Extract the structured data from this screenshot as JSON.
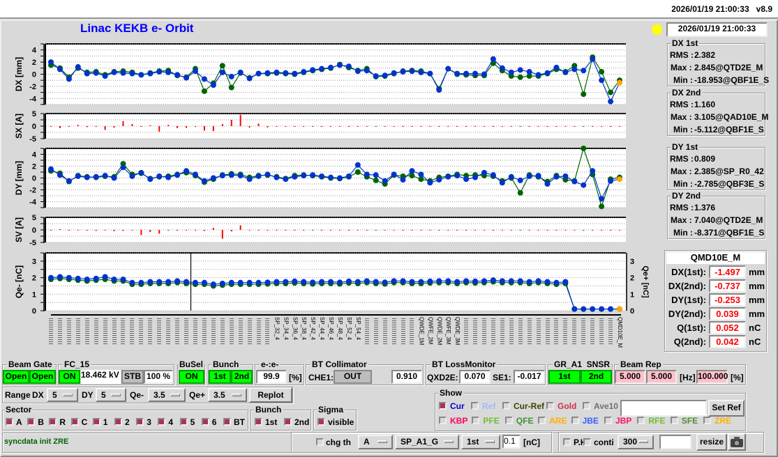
{
  "topbar": {
    "datetime": "2026/01/19 21:00:33",
    "version": "v8.9"
  },
  "title": "Linac KEKB e- Orbit",
  "status_light_color": "#ffff00",
  "panel_datetime": "2026/01/19 21:00:33",
  "stats": [
    {
      "title": "DX 1st",
      "rms_label": "RMS :",
      "rms": "2.382",
      "max_label": "Max :",
      "max": "2.845@QTD2E_M",
      "min_label": "Min :",
      "min": "-18.953@QBF1E_S"
    },
    {
      "title": "DX 2nd",
      "rms_label": "RMS :",
      "rms": "1.160",
      "max_label": "Max :",
      "max": "3.105@QAD10E_M",
      "min_label": "Min :",
      "min": "-5.112@QBF1E_S"
    },
    {
      "title": "DY 1st",
      "rms_label": "RMS :",
      "rms": "0.809",
      "max_label": "Max :",
      "max": "2.385@SP_R0_42",
      "min_label": "Min :",
      "min": "-2.785@QBF3E_S"
    },
    {
      "title": "DY 2nd",
      "rms_label": "RMS :",
      "rms": "1.376",
      "max_label": "Max :",
      "max": "7.040@QTD2E_M",
      "min_label": "Min :",
      "min": "-8.371@QBF1E_S"
    }
  ],
  "monitor": {
    "name": "QMD10E_M",
    "rows": [
      {
        "label": "DX(1st):",
        "value": "-1.497",
        "unit": "mm"
      },
      {
        "label": "DX(2nd):",
        "value": "-0.737",
        "unit": "mm"
      },
      {
        "label": "DY(1st):",
        "value": "-0.253",
        "unit": "mm"
      },
      {
        "label": "DY(2nd):",
        "value": "0.039",
        "unit": "mm"
      },
      {
        "label": "Q(1st):",
        "value": "0.052",
        "unit": "nC"
      },
      {
        "label": "Q(2nd):",
        "value": "0.042",
        "unit": "nC"
      }
    ]
  },
  "chart_data": [
    {
      "type": "line",
      "ylabel": "DX [mm]",
      "ylim": [
        -5,
        5
      ],
      "ticks": [
        "4",
        "2",
        "0",
        "-2",
        "-4"
      ],
      "grid": true,
      "series": [
        {
          "color": "#006400",
          "values": [
            1.5,
            1.0,
            -0.5,
            1.0,
            0.3,
            0.4,
            -0.1,
            0.4,
            0.5,
            0.3,
            -0.1,
            0.2,
            0.5,
            0.6,
            -0.2,
            -0.5,
            0.9,
            -2.8,
            -1.5,
            1.4,
            -2.2,
            0.2,
            -0.6,
            0.1,
            0.1,
            0.2,
            0.1,
            0.0,
            0.3,
            0.6,
            0.8,
            1.0,
            1.6,
            1.1,
            0.6,
            0.9,
            -0.4,
            -0.3,
            0.1,
            0.5,
            0.6,
            0.5,
            0.1,
            -2.4,
            0.9,
            0.0,
            -0.1,
            -0.2,
            -0.2,
            1.8,
            0.6,
            -0.3,
            -0.5,
            -0.3,
            -0.3,
            0.1,
            0.8,
            0.4,
            1.4,
            -3.3,
            2.8,
            0.4,
            -3.0,
            -1.0
          ]
        },
        {
          "color": "#0033cc",
          "values": [
            2.0,
            0.8,
            -0.8,
            1.2,
            0.1,
            0.2,
            -0.3,
            0.3,
            0.2,
            0.1,
            -0.1,
            0.1,
            0.4,
            0.3,
            -0.1,
            -0.6,
            0.5,
            -0.8,
            -1.8,
            0.3,
            -0.4,
            0.3,
            -0.7,
            0.1,
            0.2,
            0.3,
            0.2,
            0.1,
            0.4,
            0.7,
            0.9,
            1.1,
            1.5,
            1.3,
            0.5,
            0.6,
            -0.3,
            -0.2,
            0.2,
            0.4,
            0.5,
            0.3,
            0.1,
            -2.6,
            0.9,
            0.1,
            0.1,
            0.1,
            0.0,
            2.5,
            1.0,
            0.3,
            0.7,
            0.4,
            -0.1,
            0.2,
            1.1,
            0.3,
            0.8,
            0.6,
            2.5,
            -1.0,
            -4.5,
            -1.4
          ]
        }
      ]
    },
    {
      "type": "bar",
      "ylabel": "SX [A]",
      "ylim": [
        -5,
        5
      ],
      "ticks": [
        "5",
        "0",
        "-5"
      ],
      "grid": true,
      "series": [
        {
          "color": "#ff0000",
          "values": [
            0,
            -0.8,
            -0.3,
            0.5,
            -0.4,
            -0.3,
            -1.5,
            -0.6,
            2,
            0.8,
            0,
            0.3,
            -2.2,
            0.5,
            -0.8,
            -0.7,
            0,
            -1.8,
            -2.0,
            0.8,
            2.5,
            4.5,
            -0.6,
            1.0,
            -0.5,
            0,
            0,
            0,
            0,
            0,
            0,
            0,
            0,
            0,
            0,
            0,
            0,
            0,
            0,
            0,
            0,
            0,
            0,
            0,
            0,
            0,
            0,
            0,
            0,
            0,
            0,
            0,
            0,
            0,
            0,
            0,
            0,
            0,
            0,
            0,
            0,
            0,
            0,
            0
          ]
        }
      ]
    },
    {
      "type": "line",
      "ylabel": "DY [mm]",
      "ylim": [
        -5,
        5
      ],
      "ticks": [
        "4",
        "2",
        "0",
        "-2",
        "-4"
      ],
      "grid": true,
      "series": [
        {
          "color": "#006400",
          "values": [
            1.2,
            0.8,
            -0.6,
            0.4,
            0.2,
            0.1,
            0.3,
            0.2,
            2.4,
            0.6,
            0.8,
            -0.1,
            0.2,
            0.3,
            0.6,
            0.9,
            0.4,
            -0.7,
            -0.2,
            0.5,
            0.7,
            0.6,
            0.1,
            0.4,
            0.5,
            0.2,
            -0.1,
            0.4,
            0.5,
            0.4,
            0.2,
            0.0,
            -0.1,
            0.2,
            1.0,
            0.2,
            -0.4,
            -1.0,
            0.5,
            0.3,
            0.4,
            -0.2,
            -0.5,
            0.1,
            0.3,
            0.6,
            0.4,
            0.5,
            0.4,
            0.3,
            -0.5,
            0.0,
            -2.5,
            0.5,
            0.2,
            -0.6,
            0.4,
            -0.3,
            -0.5,
            5.0,
            0.6,
            -4.8,
            -0.2,
            0.1
          ]
        },
        {
          "color": "#0033cc",
          "values": [
            1.5,
            0.5,
            -0.5,
            0.3,
            0.1,
            0.2,
            0.4,
            0,
            1.8,
            0.3,
            0.9,
            -0.2,
            0.3,
            0.1,
            0.5,
            1.2,
            0.6,
            -0.5,
            0,
            0.4,
            0.5,
            0.4,
            -0.2,
            0.3,
            0.6,
            0.1,
            -0.2,
            0.2,
            0.4,
            0.5,
            0.3,
            0.1,
            0,
            0.3,
            2.2,
            0.6,
            0.5,
            -0.5,
            0.6,
            -0.3,
            1.2,
            0.6,
            -0.8,
            -0.3,
            0.2,
            0.4,
            -0.2,
            0.1,
            0.9,
            0.5,
            -0.8,
            0.2,
            -0.4,
            0.3,
            0.4,
            -1.0,
            0.2,
            0.3,
            -0.6,
            -1.2,
            1.2,
            -3.5,
            -0.5,
            -0.2
          ]
        }
      ]
    },
    {
      "type": "bar",
      "ylabel": "SV [A]",
      "ylim": [
        -5,
        5
      ],
      "ticks": [
        "5",
        "0",
        "-5"
      ],
      "grid": true,
      "series": [
        {
          "color": "#ff0000",
          "values": [
            0,
            0.3,
            -0.2,
            0,
            -0.3,
            -0.4,
            0,
            -0.5,
            -0.4,
            0,
            -2.0,
            -0.8,
            -1.5,
            0,
            0,
            0,
            0,
            -0.4,
            0.8,
            -3.5,
            -0.6,
            1.8,
            0,
            0,
            0,
            0,
            0,
            0,
            0,
            0,
            0,
            0,
            0,
            0,
            0,
            0,
            0,
            0,
            0,
            0,
            0,
            0,
            0,
            0,
            0,
            0,
            0,
            0,
            0,
            0,
            0,
            0,
            0,
            0,
            0,
            0,
            0,
            0,
            0,
            0,
            0,
            0,
            0,
            0
          ]
        }
      ]
    },
    {
      "type": "line",
      "ylabel": "Qe- [nC]",
      "y2label": "Qe+ [nC]",
      "ylim": [
        0,
        3.5
      ],
      "ticks": [
        "3",
        "2",
        "1",
        "0"
      ],
      "grid": true,
      "cursor_index": 15.5,
      "series": [
        {
          "color": "#006400",
          "values": [
            1.9,
            1.95,
            1.9,
            1.85,
            1.8,
            1.85,
            1.9,
            1.8,
            1.8,
            1.6,
            1.6,
            1.65,
            1.65,
            1.65,
            1.7,
            1.65,
            1.6,
            1.6,
            1.5,
            1.55,
            1.6,
            1.6,
            1.6,
            1.6,
            1.62,
            1.65,
            1.65,
            1.68,
            1.65,
            1.62,
            1.65,
            1.65,
            1.62,
            1.68,
            1.65,
            1.7,
            1.65,
            1.62,
            1.7,
            1.7,
            1.65,
            1.65,
            1.68,
            1.7,
            1.7,
            1.65,
            1.7,
            1.68,
            1.7,
            1.75,
            1.7,
            1.7,
            1.7,
            1.65,
            1.7,
            1.65,
            1.6,
            1.65,
            0.1,
            0.1,
            0.1,
            0.1,
            0.1,
            0.1
          ]
        },
        {
          "color": "#0033cc",
          "values": [
            2.0,
            2.05,
            2.0,
            1.95,
            1.9,
            1.95,
            2.05,
            1.9,
            1.9,
            1.7,
            1.7,
            1.75,
            1.75,
            1.75,
            1.8,
            1.75,
            1.7,
            1.7,
            1.6,
            1.65,
            1.7,
            1.7,
            1.7,
            1.7,
            1.72,
            1.75,
            1.75,
            1.78,
            1.75,
            1.72,
            1.75,
            1.75,
            1.72,
            1.78,
            1.75,
            1.8,
            1.75,
            1.72,
            1.8,
            1.8,
            1.75,
            1.75,
            1.78,
            1.8,
            1.8,
            1.75,
            1.8,
            1.78,
            1.8,
            1.85,
            1.8,
            1.8,
            1.8,
            1.75,
            1.8,
            1.75,
            1.7,
            1.75,
            0.1,
            0.1,
            0.1,
            0.1,
            0.1,
            0.1
          ]
        }
      ]
    }
  ],
  "highlight_color": "#ffa500",
  "x_labels": [
    {
      "i": 25,
      "name": "SP_32_4"
    },
    {
      "i": 26,
      "name": "SP_34_4"
    },
    {
      "i": 27,
      "name": "SP_36_4"
    },
    {
      "i": 28,
      "name": "SP_38_4"
    },
    {
      "i": 29,
      "name": "SP_42_4"
    },
    {
      "i": 30,
      "name": "SP_44_4"
    },
    {
      "i": 31,
      "name": "SP_46_4"
    },
    {
      "i": 32,
      "name": "SP_48_4"
    },
    {
      "i": 33,
      "name": "SP_52_4"
    },
    {
      "i": 34,
      "name": "SP_54_4"
    },
    {
      "i": 41,
      "name": "QWDE_1M"
    },
    {
      "i": 42,
      "name": "QWFE_2M"
    },
    {
      "i": 43,
      "name": "QWDE_2M"
    },
    {
      "i": 44,
      "name": "QWFE_3M"
    },
    {
      "i": 45,
      "name": "QWDE_3M"
    },
    {
      "i": 63,
      "name": "QMD10E_M"
    }
  ],
  "controls": {
    "beam_gate": {
      "label": "Beam Gate",
      "btn1": "Open",
      "btn2": "Open"
    },
    "fc15": {
      "label": "FC_15",
      "on": "ON",
      "voltage": "18.462 kV",
      "stb": "STB",
      "percent": "100 %"
    },
    "busel": {
      "label": "BuSel",
      "on": "ON"
    },
    "bunch": {
      "label": "Bunch",
      "first": "1st",
      "second": "2nd"
    },
    "ratio": {
      "label": "e-:e-",
      "value": "99.9",
      "unit": "[%]"
    },
    "bt_collimator": {
      "label": "BT Collimator",
      "che1": "CHE1:",
      "state": "OUT",
      "value": "0.910"
    },
    "bt_loss": {
      "label": "BT LossMonitor",
      "qxd2e": "QXD2E:",
      "qxd2e_value": "0.070",
      "se1": "SE1:",
      "se1_value": "-0.017"
    },
    "gr_a1": {
      "label": "GR_A1  SNSR",
      "first": "1st",
      "second": "2nd"
    },
    "beam_rep": {
      "label": "Beam Rep",
      "v1": "5.000",
      "v2": "5.000",
      "hz": "[Hz]",
      "pct": "100.000",
      "pct_unit": "[%]"
    },
    "range": {
      "label": "Range",
      "dx": "DX",
      "dx_val": "5",
      "dy": "DY",
      "dy_val": "5",
      "qem": "Qe-",
      "qem_val": "3.5",
      "qep": "Qe+",
      "qep_val": "3.5",
      "replot": "Replot"
    },
    "sector": {
      "label": "Sector",
      "items": [
        {
          "l": "A",
          "on": true
        },
        {
          "l": "B",
          "on": true
        },
        {
          "l": "R",
          "on": true
        },
        {
          "l": "C",
          "on": true
        },
        {
          "l": "1",
          "on": true
        },
        {
          "l": "2",
          "on": true
        },
        {
          "l": "3",
          "on": true
        },
        {
          "l": "4",
          "on": true
        },
        {
          "l": "5",
          "on": true
        },
        {
          "l": "6",
          "on": true
        },
        {
          "l": "BT",
          "on": true
        }
      ]
    },
    "bunch2": {
      "label": "Bunch",
      "first": "1st",
      "second": "2nd"
    },
    "sigma": {
      "label": "Sigma",
      "visible": "visible"
    },
    "show": {
      "label": "Show",
      "row1": [
        {
          "l": "Cur",
          "c": "#0000cc",
          "on": true
        },
        {
          "l": "Ref",
          "c": "#a0b8ff",
          "on": false
        },
        {
          "l": "Cur-Ref",
          "c": "#404000",
          "on": false
        },
        {
          "l": "Gold",
          "c": "#d03040",
          "on": false
        },
        {
          "l": "Ave10",
          "c": "#707070",
          "on": false
        }
      ],
      "ref_input": "",
      "set_ref": "Set Ref",
      "row2": [
        {
          "l": "KBP",
          "c": "#ff0060"
        },
        {
          "l": "PFE",
          "c": "#70c030"
        },
        {
          "l": "QFE",
          "c": "#409030"
        },
        {
          "l": "ARE",
          "c": "#ffb000"
        },
        {
          "l": "JBE",
          "c": "#3060ff"
        },
        {
          "l": "JBP",
          "c": "#ff1070"
        },
        {
          "l": "RFE",
          "c": "#70c030"
        },
        {
          "l": "SFE",
          "c": "#509030"
        },
        {
          "l": "ZRE",
          "c": "#ffb000"
        }
      ]
    },
    "status": "syncdata init ZRE",
    "chg": {
      "label": "chg th",
      "mode": "A",
      "monitor": "SP_A1_G",
      "bunch": "1st",
      "threshold": "0.1",
      "unit": "[nC]"
    },
    "ph": {
      "ph": "P.H",
      "conti": "conti",
      "interval": "300",
      "input": "",
      "resize": "resize"
    }
  }
}
